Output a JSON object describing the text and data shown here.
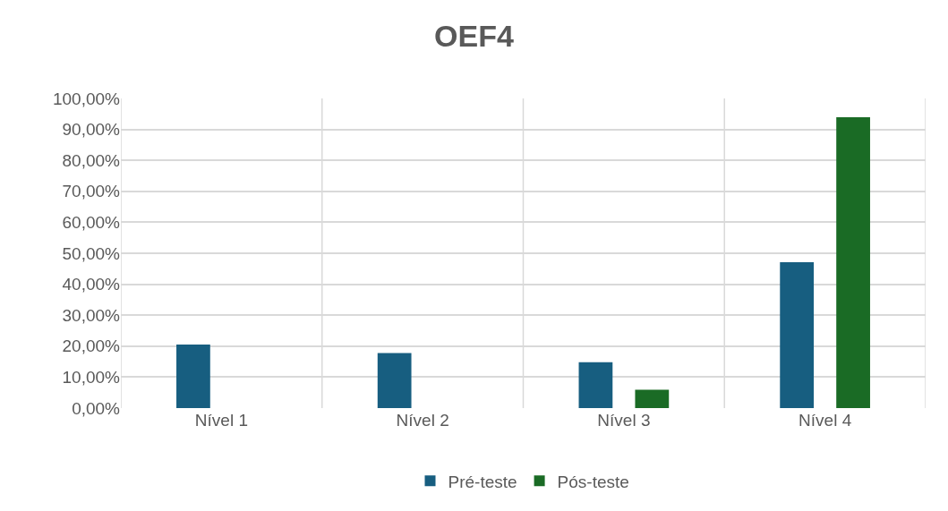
{
  "chart_data": {
    "type": "bar",
    "title": "OEF4",
    "categories": [
      "Nível 1",
      "Nível 2",
      "Nível 3",
      "Nível 4"
    ],
    "series": [
      {
        "name": "Pré-teste",
        "color": "#175e80",
        "values": [
          20.5,
          17.8,
          14.8,
          47.1
        ]
      },
      {
        "name": "Pós-teste",
        "color": "#1a6b25",
        "values": [
          null,
          null,
          5.9,
          93.9
        ]
      }
    ],
    "ylim": [
      0,
      100
    ],
    "yticks": [
      {
        "value": 0,
        "label": "0,00%"
      },
      {
        "value": 10,
        "label": "10,00%"
      },
      {
        "value": 20,
        "label": "20,00%"
      },
      {
        "value": 30,
        "label": "30,00%"
      },
      {
        "value": 40,
        "label": "40,00%"
      },
      {
        "value": 50,
        "label": "50,00%"
      },
      {
        "value": 60,
        "label": "60,00%"
      },
      {
        "value": 70,
        "label": "70,00%"
      },
      {
        "value": 80,
        "label": "80,00%"
      },
      {
        "value": 90,
        "label": "90,00%"
      },
      {
        "value": 100,
        "label": "100,00%"
      }
    ],
    "grid": true,
    "legend": "bottom"
  }
}
